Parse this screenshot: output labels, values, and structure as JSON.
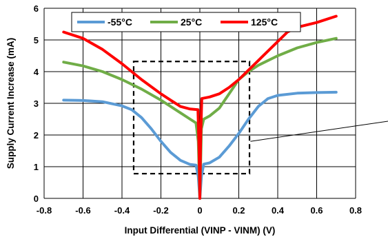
{
  "chart_data": {
    "type": "line",
    "title": "",
    "xlabel": "Input Differential (VINP - VINM) (V)",
    "ylabel": "Supply Current Increase (mA)",
    "xlim": [
      -0.8,
      0.8
    ],
    "ylim": [
      0,
      6
    ],
    "xticks": [
      "-0.8",
      "-0.6",
      "-0.4",
      "-0.2",
      "0",
      "0.2",
      "0.4",
      "0.6",
      "0.8"
    ],
    "yticks": [
      "0",
      "1",
      "2",
      "3",
      "4",
      "5",
      "6"
    ],
    "grid": true,
    "legend_position": "top-left",
    "series": [
      {
        "name": "-55°C",
        "color": "#5B9BD5",
        "points": [
          [
            -0.7,
            3.1
          ],
          [
            -0.6,
            3.09
          ],
          [
            -0.5,
            3.05
          ],
          [
            -0.4,
            2.92
          ],
          [
            -0.35,
            2.8
          ],
          [
            -0.3,
            2.55
          ],
          [
            -0.25,
            2.2
          ],
          [
            -0.2,
            1.8
          ],
          [
            -0.15,
            1.45
          ],
          [
            -0.1,
            1.2
          ],
          [
            -0.05,
            1.07
          ],
          [
            -0.02,
            1.05
          ],
          [
            -0.008,
            0.7
          ],
          [
            0,
            0
          ],
          [
            0.008,
            0.7
          ],
          [
            0.02,
            1.08
          ],
          [
            0.05,
            1.12
          ],
          [
            0.1,
            1.3
          ],
          [
            0.15,
            1.65
          ],
          [
            0.2,
            2.05
          ],
          [
            0.25,
            2.5
          ],
          [
            0.3,
            2.9
          ],
          [
            0.35,
            3.15
          ],
          [
            0.4,
            3.25
          ],
          [
            0.5,
            3.32
          ],
          [
            0.6,
            3.34
          ],
          [
            0.7,
            3.35
          ]
        ]
      },
      {
        "name": "25°C",
        "color": "#70AD47",
        "points": [
          [
            -0.7,
            4.3
          ],
          [
            -0.6,
            4.18
          ],
          [
            -0.5,
            4.0
          ],
          [
            -0.4,
            3.75
          ],
          [
            -0.3,
            3.45
          ],
          [
            -0.2,
            3.1
          ],
          [
            -0.15,
            2.9
          ],
          [
            -0.1,
            2.7
          ],
          [
            -0.05,
            2.5
          ],
          [
            -0.02,
            2.38
          ],
          [
            -0.008,
            1.8
          ],
          [
            0,
            0
          ],
          [
            0.008,
            2.2
          ],
          [
            0.02,
            2.5
          ],
          [
            0.05,
            2.6
          ],
          [
            0.1,
            2.85
          ],
          [
            0.15,
            3.3
          ],
          [
            0.2,
            3.75
          ],
          [
            0.25,
            4.0
          ],
          [
            0.3,
            4.2
          ],
          [
            0.4,
            4.5
          ],
          [
            0.5,
            4.75
          ],
          [
            0.6,
            4.92
          ],
          [
            0.7,
            5.05
          ]
        ]
      },
      {
        "name": "125°C",
        "color": "#FF0000",
        "points": [
          [
            -0.7,
            5.25
          ],
          [
            -0.6,
            5.05
          ],
          [
            -0.5,
            4.7
          ],
          [
            -0.4,
            4.25
          ],
          [
            -0.3,
            3.75
          ],
          [
            -0.2,
            3.3
          ],
          [
            -0.15,
            3.1
          ],
          [
            -0.1,
            2.9
          ],
          [
            -0.05,
            2.82
          ],
          [
            -0.01,
            2.8
          ],
          [
            -0.004,
            1.5
          ],
          [
            0,
            0
          ],
          [
            0.004,
            1.8
          ],
          [
            0.01,
            3.15
          ],
          [
            0.05,
            3.2
          ],
          [
            0.1,
            3.3
          ],
          [
            0.15,
            3.5
          ],
          [
            0.2,
            3.75
          ],
          [
            0.3,
            4.35
          ],
          [
            0.4,
            4.95
          ],
          [
            0.45,
            5.25
          ],
          [
            0.5,
            5.4
          ],
          [
            0.6,
            5.55
          ],
          [
            0.7,
            5.75
          ]
        ]
      }
    ],
    "annotation_box": {
      "x0": -0.34,
      "x1": 0.255,
      "y0": 0.78,
      "y1": 4.32
    },
    "callout_line": {
      "from": [
        0.26,
        1.8
      ]
    }
  }
}
